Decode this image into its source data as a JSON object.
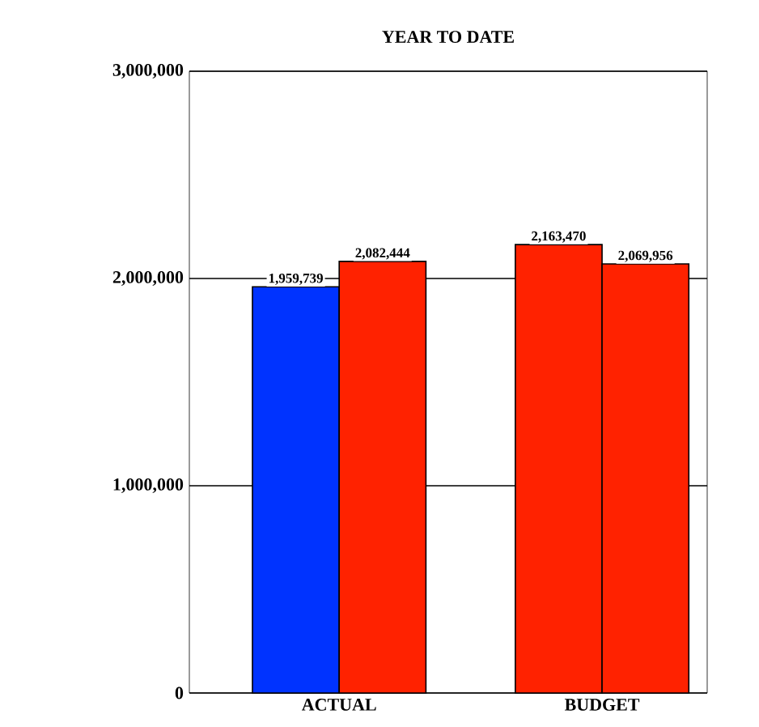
{
  "chart_data": {
    "type": "bar",
    "title": "YEAR TO DATE",
    "categories": [
      "ACTUAL",
      "BUDGET"
    ],
    "series": [
      {
        "colors": [
          "#0033ff",
          "#ff2200"
        ],
        "values": [
          1959739,
          2163470
        ],
        "value_labels": [
          "1,959,739",
          "2,163,470"
        ]
      },
      {
        "color": "#ff2200",
        "values": [
          2082444,
          2069956
        ],
        "value_labels": [
          "2,082,444",
          "2,069,956"
        ]
      }
    ],
    "ylim": [
      0,
      3000000
    ],
    "yticks": [
      {
        "value": 0,
        "label": "0"
      },
      {
        "value": 1000000,
        "label": "1,000,000"
      },
      {
        "value": 2000000,
        "label": "2,000,000"
      },
      {
        "value": 3000000,
        "label": "3,000,000"
      }
    ],
    "grid": "y"
  }
}
